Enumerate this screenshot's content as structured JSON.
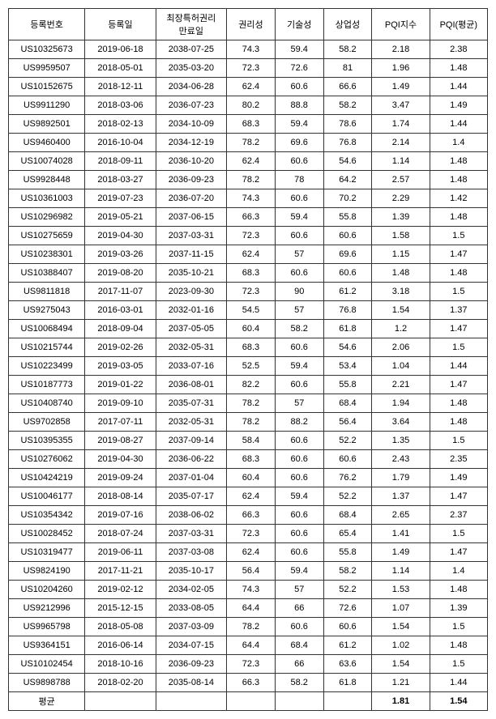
{
  "columns": [
    "등록번호",
    "등록일",
    "최장특허권리\n만료일",
    "권리성",
    "기술성",
    "상업성",
    "PQI지수",
    "PQI(평균)"
  ],
  "rows": [
    [
      "US10325673",
      "2019-06-18",
      "2038-07-25",
      "74.3",
      "59.4",
      "58.2",
      "2.18",
      "2.38"
    ],
    [
      "US9959507",
      "2018-05-01",
      "2035-03-20",
      "72.3",
      "72.6",
      "81",
      "1.96",
      "1.48"
    ],
    [
      "US10152675",
      "2018-12-11",
      "2034-06-28",
      "62.4",
      "60.6",
      "66.6",
      "1.49",
      "1.44"
    ],
    [
      "US9911290",
      "2018-03-06",
      "2036-07-23",
      "80.2",
      "88.8",
      "58.2",
      "3.47",
      "1.49"
    ],
    [
      "US9892501",
      "2018-02-13",
      "2034-10-09",
      "68.3",
      "59.4",
      "78.6",
      "1.74",
      "1.44"
    ],
    [
      "US9460400",
      "2016-10-04",
      "2034-12-19",
      "78.2",
      "69.6",
      "76.8",
      "2.14",
      "1.4"
    ],
    [
      "US10074028",
      "2018-09-11",
      "2036-10-20",
      "62.4",
      "60.6",
      "54.6",
      "1.14",
      "1.48"
    ],
    [
      "US9928448",
      "2018-03-27",
      "2036-09-23",
      "78.2",
      "78",
      "64.2",
      "2.57",
      "1.48"
    ],
    [
      "US10361003",
      "2019-07-23",
      "2036-07-20",
      "74.3",
      "60.6",
      "70.2",
      "2.29",
      "1.42"
    ],
    [
      "US10296982",
      "2019-05-21",
      "2037-06-15",
      "66.3",
      "59.4",
      "55.8",
      "1.39",
      "1.48"
    ],
    [
      "US10275659",
      "2019-04-30",
      "2037-03-31",
      "72.3",
      "60.6",
      "60.6",
      "1.58",
      "1.5"
    ],
    [
      "US10238301",
      "2019-03-26",
      "2037-11-15",
      "62.4",
      "57",
      "69.6",
      "1.15",
      "1.47"
    ],
    [
      "US10388407",
      "2019-08-20",
      "2035-10-21",
      "68.3",
      "60.6",
      "60.6",
      "1.48",
      "1.48"
    ],
    [
      "US9811818",
      "2017-11-07",
      "2023-09-30",
      "72.3",
      "90",
      "61.2",
      "3.18",
      "1.5"
    ],
    [
      "US9275043",
      "2016-03-01",
      "2032-01-16",
      "54.5",
      "57",
      "76.8",
      "1.54",
      "1.37"
    ],
    [
      "US10068494",
      "2018-09-04",
      "2037-05-05",
      "60.4",
      "58.2",
      "61.8",
      "1.2",
      "1.47"
    ],
    [
      "US10215744",
      "2019-02-26",
      "2032-05-31",
      "68.3",
      "60.6",
      "54.6",
      "2.06",
      "1.5"
    ],
    [
      "US10223499",
      "2019-03-05",
      "2033-07-16",
      "52.5",
      "59.4",
      "53.4",
      "1.04",
      "1.44"
    ],
    [
      "US10187773",
      "2019-01-22",
      "2036-08-01",
      "82.2",
      "60.6",
      "55.8",
      "2.21",
      "1.47"
    ],
    [
      "US10408740",
      "2019-09-10",
      "2035-07-31",
      "78.2",
      "57",
      "68.4",
      "1.94",
      "1.48"
    ],
    [
      "US9702858",
      "2017-07-11",
      "2032-05-31",
      "78.2",
      "88.2",
      "56.4",
      "3.64",
      "1.48"
    ],
    [
      "US10395355",
      "2019-08-27",
      "2037-09-14",
      "58.4",
      "60.6",
      "52.2",
      "1.35",
      "1.5"
    ],
    [
      "US10276062",
      "2019-04-30",
      "2036-06-22",
      "68.3",
      "60.6",
      "60.6",
      "2.43",
      "2.35"
    ],
    [
      "US10424219",
      "2019-09-24",
      "2037-01-04",
      "60.4",
      "60.6",
      "76.2",
      "1.79",
      "1.49"
    ],
    [
      "US10046177",
      "2018-08-14",
      "2035-07-17",
      "62.4",
      "59.4",
      "52.2",
      "1.37",
      "1.47"
    ],
    [
      "US10354342",
      "2019-07-16",
      "2038-06-02",
      "66.3",
      "60.6",
      "68.4",
      "2.65",
      "2.37"
    ],
    [
      "US10028452",
      "2018-07-24",
      "2037-03-31",
      "72.3",
      "60.6",
      "65.4",
      "1.41",
      "1.5"
    ],
    [
      "US10319477",
      "2019-06-11",
      "2037-03-08",
      "62.4",
      "60.6",
      "55.8",
      "1.49",
      "1.47"
    ],
    [
      "US9824190",
      "2017-11-21",
      "2035-10-17",
      "56.4",
      "59.4",
      "58.2",
      "1.14",
      "1.4"
    ],
    [
      "US10204260",
      "2019-02-12",
      "2034-02-05",
      "74.3",
      "57",
      "52.2",
      "1.53",
      "1.48"
    ],
    [
      "US9212996",
      "2015-12-15",
      "2033-08-05",
      "64.4",
      "66",
      "72.6",
      "1.07",
      "1.39"
    ],
    [
      "US9965798",
      "2018-05-08",
      "2037-03-09",
      "78.2",
      "60.6",
      "60.6",
      "1.54",
      "1.5"
    ],
    [
      "US9364151",
      "2016-06-14",
      "2034-07-15",
      "64.4",
      "68.4",
      "61.2",
      "1.02",
      "1.48"
    ],
    [
      "US10102454",
      "2018-10-16",
      "2036-09-23",
      "72.3",
      "66",
      "63.6",
      "1.54",
      "1.5"
    ],
    [
      "US9898788",
      "2018-02-20",
      "2035-08-14",
      "66.3",
      "58.2",
      "61.8",
      "1.21",
      "1.44"
    ]
  ],
  "footer": {
    "label": "평균",
    "pqi": "1.81",
    "pqi_avg": "1.54"
  }
}
